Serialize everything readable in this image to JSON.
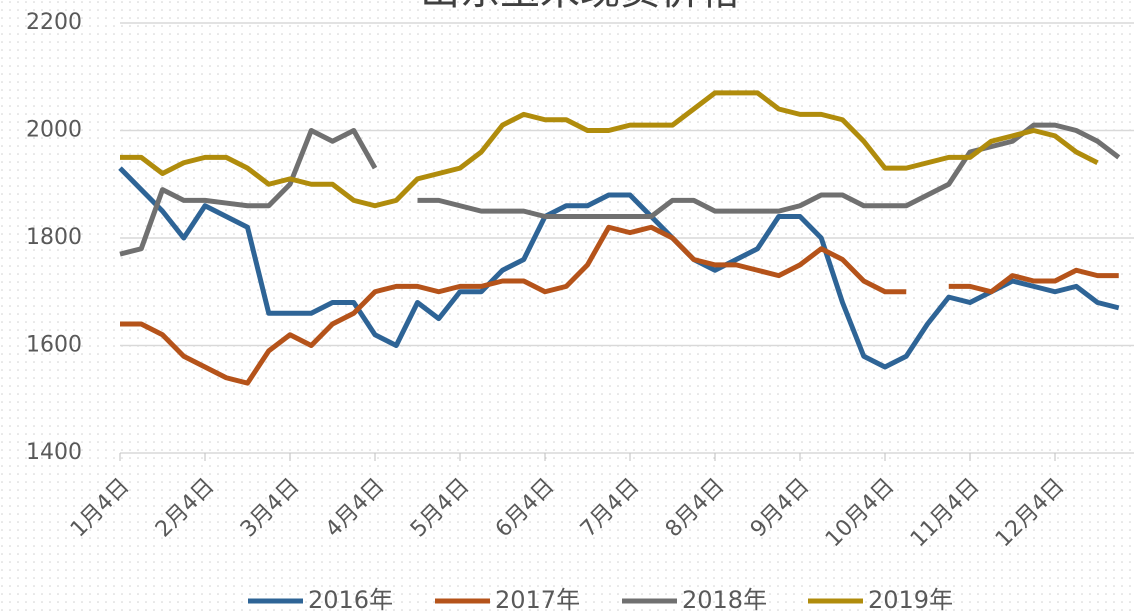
{
  "chart_data": {
    "type": "line",
    "title": "山东玉米现货价格",
    "categories": [
      "1月4日",
      null,
      null,
      null,
      "2月4日",
      null,
      null,
      null,
      "3月4日",
      null,
      null,
      null,
      "4月4日",
      null,
      null,
      null,
      "5月4日",
      null,
      null,
      null,
      "6月4日",
      null,
      null,
      null,
      "7月4日",
      null,
      null,
      null,
      "8月4日",
      null,
      null,
      null,
      "9月4日",
      null,
      null,
      null,
      "10月4日",
      null,
      null,
      null,
      "11月4日",
      null,
      null,
      null,
      "12月4日",
      null,
      null,
      null
    ],
    "ylim": [
      1400,
      2200
    ],
    "yticks": [
      1400,
      1600,
      1800,
      2000,
      2200
    ],
    "grid": true,
    "legend": "bottom",
    "series": [
      {
        "name": "2016年",
        "color": "#2e6496",
        "values": [
          1930,
          1890,
          1850,
          1800,
          1860,
          1840,
          1820,
          1660,
          1660,
          1660,
          1680,
          1680,
          1620,
          1600,
          1680,
          1650,
          1700,
          1700,
          1740,
          1760,
          1840,
          1860,
          1860,
          1880,
          1880,
          1840,
          1800,
          1760,
          1740,
          1760,
          1780,
          1840,
          1840,
          1800,
          1680,
          1580,
          1560,
          1580,
          1640,
          1690,
          1680,
          1700,
          1720,
          1710,
          1700,
          1710,
          1680,
          1670
        ]
      },
      {
        "name": "2017年",
        "color": "#b5531a",
        "values": [
          1640,
          1640,
          1620,
          1580,
          1560,
          1540,
          1530,
          1590,
          1620,
          1600,
          1640,
          1660,
          1700,
          1710,
          1710,
          1700,
          1710,
          1710,
          1720,
          1720,
          1700,
          1710,
          1750,
          1820,
          1810,
          1820,
          1800,
          1760,
          1750,
          1750,
          1740,
          1730,
          1750,
          1780,
          1760,
          1720,
          1700,
          1700,
          null,
          1710,
          1710,
          1700,
          1730,
          1720,
          1720,
          1740,
          1730,
          1730
        ]
      },
      {
        "name": "2018年",
        "color": "#707070",
        "values": [
          1770,
          1780,
          1890,
          1870,
          1870,
          1865,
          1860,
          1860,
          1900,
          2000,
          1980,
          2000,
          1930,
          null,
          1870,
          1870,
          1860,
          1850,
          1850,
          1850,
          1840,
          1840,
          1840,
          1840,
          1840,
          1840,
          1870,
          1870,
          1850,
          1850,
          1850,
          1850,
          1860,
          1880,
          1880,
          1860,
          1860,
          1860,
          1880,
          1900,
          1960,
          1970,
          1980,
          2010,
          2010,
          2000,
          1980,
          1950
        ]
      },
      {
        "name": "2019年",
        "color": "#b08c0c",
        "values": [
          1950,
          1950,
          1920,
          1940,
          1950,
          1950,
          1930,
          1900,
          1910,
          1900,
          1900,
          1870,
          1860,
          1870,
          1910,
          1920,
          1930,
          1960,
          2010,
          2030,
          2020,
          2020,
          2000,
          2000,
          2010,
          2010,
          2010,
          2040,
          2070,
          2070,
          2070,
          2040,
          2030,
          2030,
          2020,
          1980,
          1930,
          1930,
          1940,
          1950,
          1950,
          1980,
          1990,
          2000,
          1990,
          1960,
          1940,
          null
        ]
      }
    ]
  }
}
